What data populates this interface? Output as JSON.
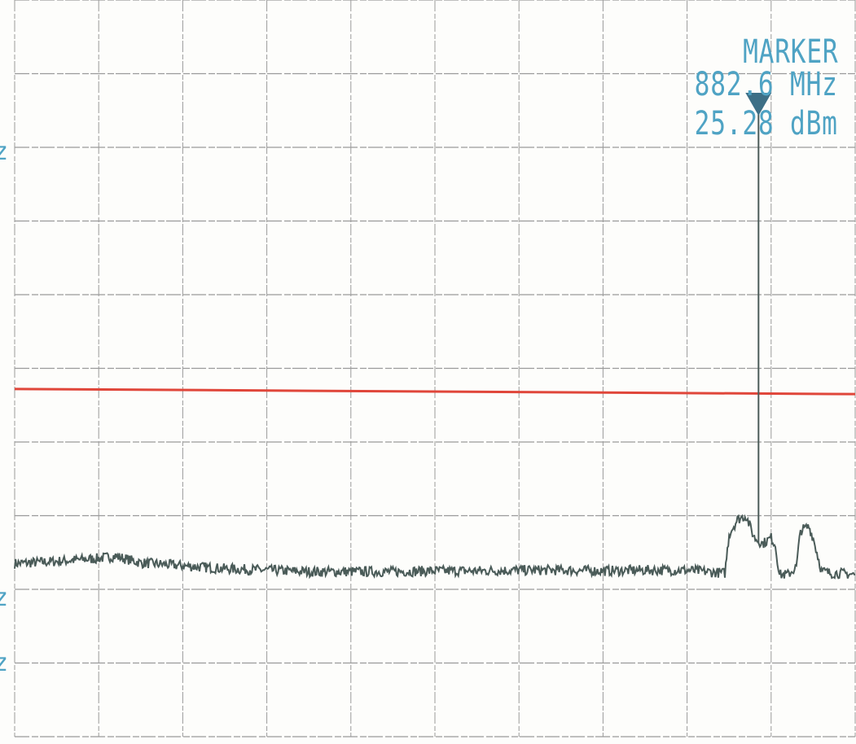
{
  "marker": {
    "title": "MARKER",
    "frequency": "882.6 MHz",
    "level": "25.28 dBm"
  },
  "left_edge_labels": [
    "z",
    "z",
    "z"
  ],
  "colors": {
    "grid": "#9a9a9a",
    "trace": "#4a5b58",
    "reference_line": "#e0463a",
    "marker_text": "#4fa3c4",
    "marker_symbol": "#3d6f86"
  },
  "chart_data": {
    "type": "line",
    "title": "",
    "xlabel": "",
    "ylabel": "",
    "grid": true,
    "divisions": {
      "x": 10,
      "y": 10
    },
    "xlim": [
      0,
      10
    ],
    "ylim": [
      0,
      10
    ],
    "reference_line": {
      "y_start": 4.72,
      "y_end": 4.65
    },
    "marker": {
      "x": 8.85,
      "label_frequency": "882.6 MHz",
      "label_level": "25.28 dBm"
    },
    "series": [
      {
        "x": [
          0,
          0.5,
          1.0,
          1.2,
          1.5,
          2.0,
          2.5,
          3.0,
          3.5,
          4.0,
          4.5,
          5.0,
          5.5,
          6.0,
          6.5,
          7.0,
          7.5,
          8.0,
          8.45,
          8.5,
          8.6,
          8.7,
          8.8,
          8.9,
          9.0,
          9.05,
          9.1,
          9.2,
          9.3,
          9.35,
          9.45,
          9.5,
          9.6,
          9.7,
          9.8,
          10.0
        ],
        "y": [
          2.35,
          2.38,
          2.42,
          2.45,
          2.36,
          2.32,
          2.28,
          2.26,
          2.24,
          2.24,
          2.24,
          2.25,
          2.25,
          2.26,
          2.26,
          2.25,
          2.26,
          2.26,
          2.22,
          2.75,
          2.95,
          3.0,
          2.7,
          2.62,
          2.7,
          2.6,
          2.2,
          2.2,
          2.3,
          2.8,
          2.85,
          2.7,
          2.25,
          2.22,
          2.22,
          2.2
        ]
      }
    ]
  }
}
